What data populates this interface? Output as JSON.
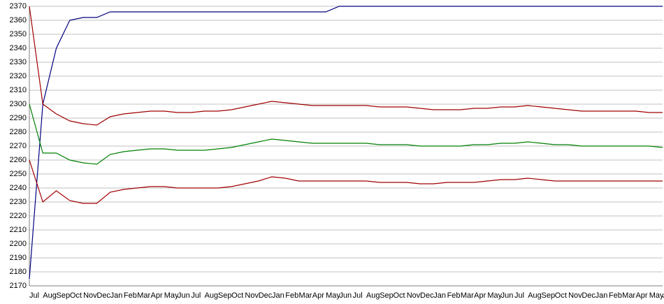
{
  "chart_data": {
    "type": "line",
    "categories": [
      "Jul",
      "Aug",
      "Sep",
      "Oct",
      "Nov",
      "Dec",
      "Jan",
      "Feb",
      "Mar",
      "Apr",
      "May",
      "Jun",
      "Jul",
      "Aug",
      "Sep",
      "Oct",
      "Nov",
      "Dec",
      "Jan",
      "Feb",
      "Mar",
      "Apr",
      "May",
      "Jun",
      "Jul",
      "Aug",
      "Sep",
      "Oct",
      "Nov",
      "Dec",
      "Jan",
      "Feb",
      "Mar",
      "Apr",
      "May",
      "Jun",
      "Jul",
      "Aug",
      "Sep",
      "Oct",
      "Nov",
      "Dec",
      "Jan",
      "Feb",
      "Mar",
      "Apr",
      "May",
      "Jun"
    ],
    "series": [
      {
        "color": "#000080",
        "values": [
          2175,
          2300,
          2340,
          2360,
          2362,
          2362,
          2366,
          2366,
          2366,
          2366,
          2366,
          2366,
          2366,
          2366,
          2366,
          2366,
          2366,
          2366,
          2366,
          2366,
          2366,
          2366,
          2366,
          2370,
          2370,
          2370,
          2370,
          2370,
          2370,
          2370,
          2370,
          2370,
          2370,
          2370,
          2370,
          2370,
          2370,
          2370,
          2370,
          2370,
          2370,
          2370,
          2370,
          2370,
          2370,
          2370,
          2370,
          2370
        ]
      },
      {
        "color": "#a00000",
        "values": [
          2370,
          2300,
          2293,
          2288,
          2286,
          2285,
          2291,
          2293,
          2294,
          2295,
          2295,
          2294,
          2294,
          2295,
          2295,
          2296,
          2298,
          2300,
          2302,
          2301,
          2300,
          2299,
          2299,
          2299,
          2299,
          2299,
          2298,
          2298,
          2298,
          2297,
          2296,
          2296,
          2296,
          2297,
          2297,
          2298,
          2298,
          2299,
          2298,
          2297,
          2296,
          2295,
          2295,
          2295,
          2295,
          2295,
          2294,
          2294
        ]
      },
      {
        "color": "#008000",
        "values": [
          2300,
          2265,
          2265,
          2260,
          2258,
          2257,
          2264,
          2266,
          2267,
          2268,
          2268,
          2267,
          2267,
          2267,
          2268,
          2269,
          2271,
          2273,
          2275,
          2274,
          2273,
          2272,
          2272,
          2272,
          2272,
          2272,
          2271,
          2271,
          2271,
          2270,
          2270,
          2270,
          2270,
          2271,
          2271,
          2272,
          2272,
          2273,
          2272,
          2271,
          2271,
          2270,
          2270,
          2270,
          2270,
          2270,
          2270,
          2269
        ]
      },
      {
        "color": "#a00000",
        "values": [
          2260,
          2230,
          2238,
          2231,
          2229,
          2229,
          2237,
          2239,
          2240,
          2241,
          2241,
          2240,
          2240,
          2240,
          2240,
          2241,
          2243,
          2245,
          2248,
          2247,
          2245,
          2245,
          2245,
          2245,
          2245,
          2245,
          2244,
          2244,
          2244,
          2243,
          2243,
          2244,
          2244,
          2244,
          2245,
          2246,
          2246,
          2247,
          2246,
          2245,
          2245,
          2245,
          2245,
          2245,
          2245,
          2245,
          2245,
          2245
        ]
      }
    ],
    "ylim": [
      2170,
      2370
    ],
    "yticks": [
      2170,
      2180,
      2190,
      2200,
      2210,
      2220,
      2230,
      2240,
      2250,
      2260,
      2270,
      2280,
      2290,
      2300,
      2310,
      2320,
      2330,
      2340,
      2350,
      2360,
      2370
    ],
    "grid": true
  }
}
